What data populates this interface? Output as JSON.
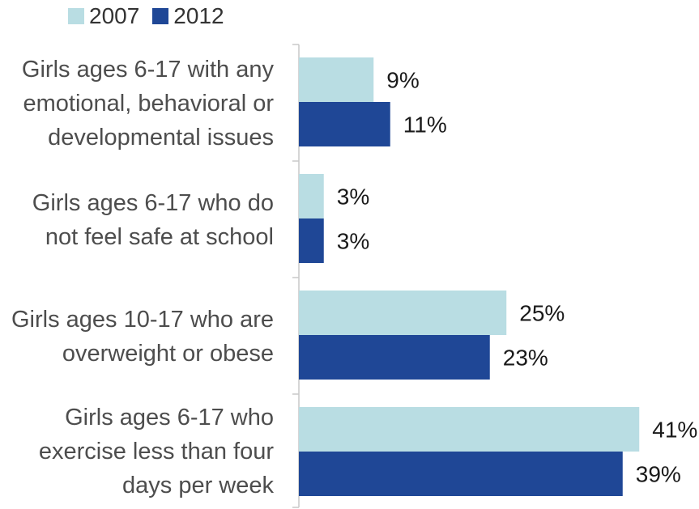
{
  "chart_data": {
    "type": "bar",
    "orientation": "horizontal",
    "categories": [
      [
        "Girls ages 6-17 with any",
        "emotional, behavioral or",
        "developmental issues"
      ],
      [
        "Girls ages 6-17 who do",
        "not feel safe at school"
      ],
      [
        "Girls ages 10-17 who are",
        "overweight or obese"
      ],
      [
        "Girls ages 6-17 who",
        "exercise less than four",
        "days per week"
      ]
    ],
    "series": [
      {
        "name": "2007",
        "color": "#b9dde3",
        "values": [
          9,
          3,
          25,
          41
        ],
        "labels": [
          "9%",
          "3%",
          "25%",
          "41%"
        ]
      },
      {
        "name": "2012",
        "color": "#1f4796",
        "values": [
          11,
          3,
          23,
          39
        ],
        "labels": [
          "11%",
          "3%",
          "23%",
          "39%"
        ]
      }
    ],
    "xlim": [
      0,
      45
    ],
    "grid": false,
    "legend": "top-left",
    "title": "",
    "xlabel": "",
    "ylabel": ""
  }
}
